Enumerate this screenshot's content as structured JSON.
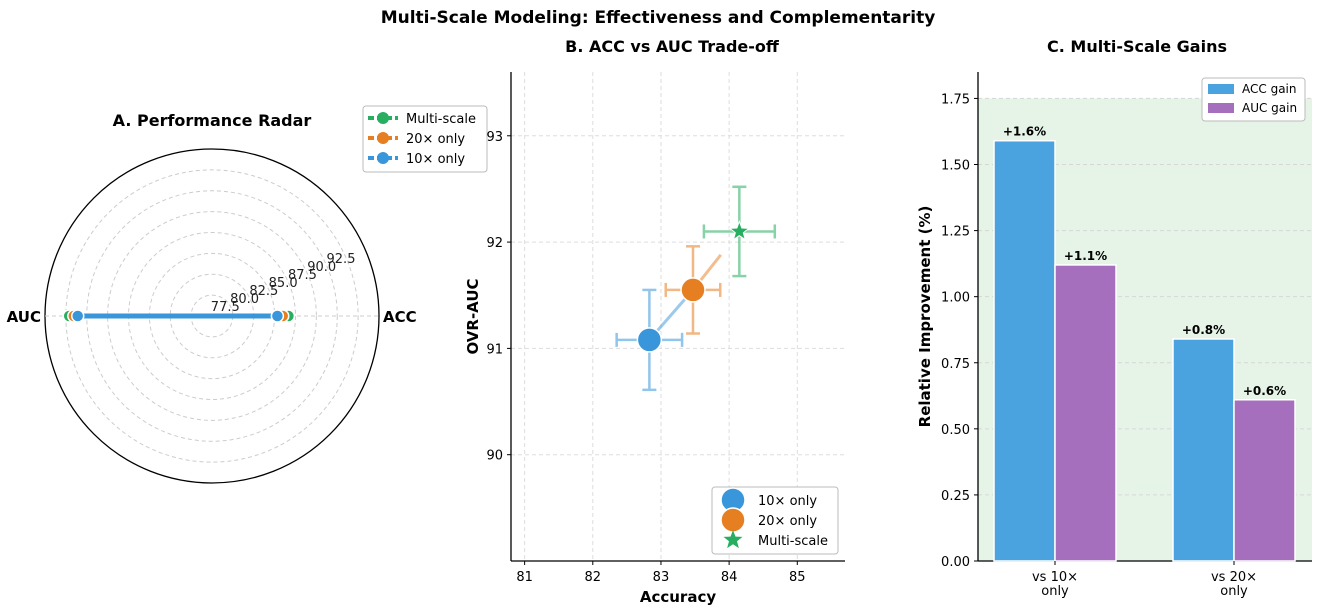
{
  "suptitle": "Multi-Scale Modeling: Effectiveness and Complementarity",
  "colors": {
    "tenx": "#3a96db",
    "twentyx": "#e67e22",
    "multi": "#27ae60",
    "acc_bar": "#4aa3df",
    "auc_bar": "#a66fbd",
    "green_band": "#e6f4e8"
  },
  "chart_data": [
    {
      "id": "radar",
      "type": "radar",
      "title": "A. Performance Radar",
      "axes": [
        "ACC",
        "AUC"
      ],
      "r_ticks": [
        "77.5",
        "80.0",
        "82.5",
        "85.0",
        "87.5",
        "90.0",
        "92.5"
      ],
      "r_range": [
        75,
        95
      ],
      "legend": [
        "Multi-scale",
        "20× only",
        "10× only"
      ],
      "series": [
        {
          "name": "Multi-scale",
          "color": "#27ae60",
          "values": [
            84.15,
            92.1
          ]
        },
        {
          "name": "20× only",
          "color": "#e67e22",
          "values": [
            83.47,
            91.55
          ]
        },
        {
          "name": "10× only",
          "color": "#3a96db",
          "values": [
            82.83,
            91.08
          ]
        }
      ]
    },
    {
      "id": "scatter",
      "type": "scatter",
      "title": "B. ACC vs AUC Trade-off",
      "xlabel": "Accuracy",
      "ylabel": "OVR-AUC",
      "xlim": [
        80.8,
        85.7
      ],
      "ylim": [
        89.0,
        93.6
      ],
      "xticks": [
        81,
        82,
        83,
        84,
        85
      ],
      "yticks": [
        90,
        91,
        92,
        93
      ],
      "points": [
        {
          "name": "10× only",
          "x": 82.83,
          "y": 91.08,
          "xerr": 0.48,
          "yerr": 0.47,
          "color": "#3a96db",
          "marker": "circle"
        },
        {
          "name": "20× only",
          "x": 83.47,
          "y": 91.55,
          "xerr": 0.4,
          "yerr": 0.41,
          "color": "#e67e22",
          "marker": "circle"
        },
        {
          "name": "Multi-scale",
          "x": 84.15,
          "y": 92.1,
          "xerr": 0.52,
          "yerr": 0.42,
          "color": "#27ae60",
          "marker": "star"
        }
      ],
      "legend": [
        "10× only",
        "20× only",
        "Multi-scale"
      ]
    },
    {
      "id": "bars",
      "type": "bar",
      "title": "C. Multi-Scale Gains",
      "ylabel": "Relative Improvement (%)",
      "categories": [
        "vs 10×\nonly",
        "vs 20×\nonly"
      ],
      "ylim": [
        0,
        1.85
      ],
      "yticks": [
        "0.00",
        "0.25",
        "0.50",
        "0.75",
        "1.00",
        "1.25",
        "1.50",
        "1.75"
      ],
      "shaded_above": 0.0,
      "series": [
        {
          "name": "ACC gain",
          "color": "#4aa3df",
          "values": [
            1.59,
            0.84
          ],
          "labels": [
            "+1.6%",
            "+0.8%"
          ]
        },
        {
          "name": "AUC gain",
          "color": "#a66fbd",
          "values": [
            1.12,
            0.61
          ],
          "labels": [
            "+1.1%",
            "+0.6%"
          ]
        }
      ]
    }
  ]
}
